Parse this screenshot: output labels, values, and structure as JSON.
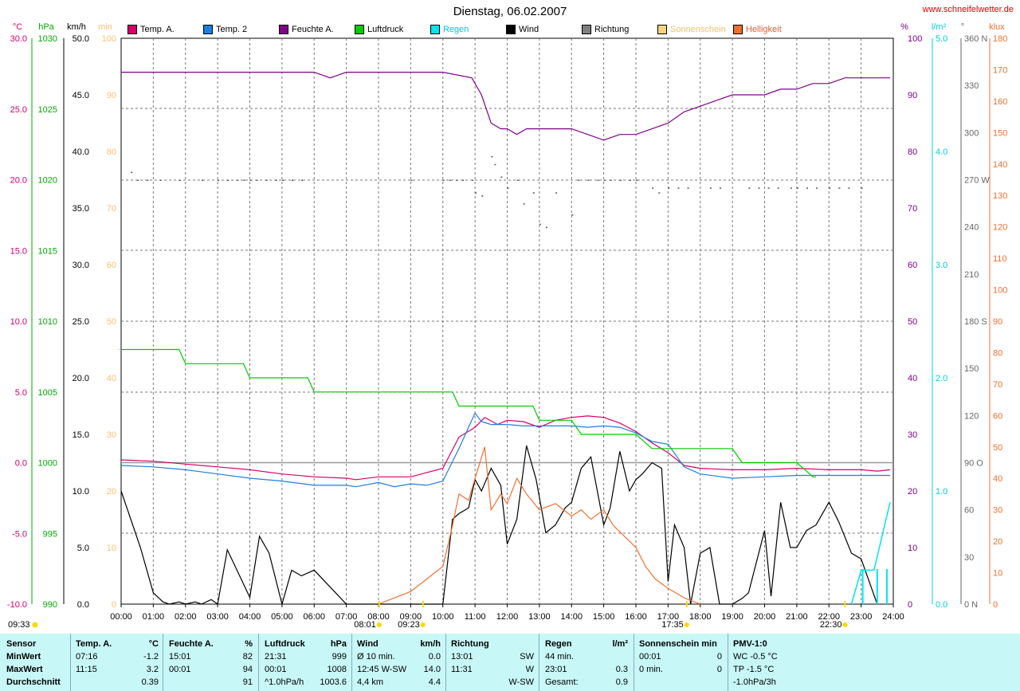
{
  "header": {
    "title": "Dienstag, 06.02.2007",
    "site": "www.schneifelwetter.de"
  },
  "legend": [
    {
      "label": "Temp. A.",
      "color": "#d6006b"
    },
    {
      "label": "Temp. 2",
      "color": "#1e7fe0"
    },
    {
      "label": "Feuchte A.",
      "color": "#80008a"
    },
    {
      "label": "Luftdruck",
      "color": "#00cc00"
    },
    {
      "label": "Regen",
      "color": "#00e5f0"
    },
    {
      "label": "Wind",
      "color": "#000000"
    },
    {
      "label": "Richtung",
      "color": "#808080"
    },
    {
      "label": "Sonnenschein",
      "color": "#ffd27f"
    },
    {
      "label": "Helligkeit",
      "color": "#f07030"
    }
  ],
  "units": {
    "temp": "°C",
    "pressure": "hPa",
    "wind": "km/h",
    "sun": "min",
    "humidity": "%",
    "rain": "l/m²",
    "dir": "°",
    "lux": "klux"
  },
  "footer": {
    "sensor": {
      "head": "Sensor",
      "rows": [
        "MinWert",
        "MaxWert",
        "Durchschnitt"
      ]
    },
    "temp": {
      "head": "Temp. A.",
      "unit": "°C",
      "rows": [
        [
          "07:16",
          "-1.2"
        ],
        [
          "11:15",
          "3.2"
        ],
        [
          "",
          "0.39"
        ]
      ]
    },
    "hum": {
      "head": "Feuchte A.",
      "unit": "%",
      "rows": [
        [
          "15:01",
          "82"
        ],
        [
          "00:01",
          "94"
        ],
        [
          "",
          "91"
        ]
      ]
    },
    "press": {
      "head": "Luftdruck",
      "unit": "hPa",
      "rows": [
        [
          "21:31",
          "999"
        ],
        [
          "00:01",
          "1008"
        ],
        [
          "^1.0hPa/h",
          "1003.6"
        ]
      ]
    },
    "wind": {
      "head": "Wind",
      "unit": "km/h",
      "rows": [
        [
          "Ø 10 min.",
          "0.0"
        ],
        [
          "12:45    W-SW",
          "14.0"
        ],
        [
          "4,4 km",
          "4.4"
        ]
      ]
    },
    "dir": {
      "head": "Richtung",
      "rows": [
        [
          "13:01",
          "SW"
        ],
        [
          "11:31",
          "W"
        ],
        [
          "",
          "W-SW"
        ]
      ]
    },
    "rain": {
      "head": "Regen",
      "unit": "l/m²",
      "rows": [
        [
          "44 min.",
          ""
        ],
        [
          "23:01",
          "0.3"
        ],
        [
          "Gesamt:",
          "0.9"
        ]
      ]
    },
    "sun": {
      "head": "Sonnenschein min",
      "rows": [
        [
          "",
          ""
        ],
        [
          "00:01",
          "0"
        ],
        [
          "0 min.",
          "0"
        ]
      ]
    },
    "pmv": {
      "head": "PMV-1:0",
      "rows": [
        "WC -0.5 °C",
        "TP -1.5 °C",
        "-1.0hPa/3h"
      ]
    }
  },
  "chart_data": {
    "type": "line",
    "title": "Dienstag, 06.02.2007",
    "x_ticks": [
      "00:00",
      "01:00",
      "02:00",
      "03:00",
      "04:00",
      "05:00",
      "06:00",
      "07:00",
      "08:00",
      "09:00",
      "10:00",
      "11:00",
      "12:00",
      "13:00",
      "14:00",
      "15:00",
      "16:00",
      "17:00",
      "18:00",
      "19:00",
      "20:00",
      "21:00",
      "22:00",
      "23:00",
      "24:00"
    ],
    "axes": {
      "temp": {
        "unit": "°C",
        "range": [
          -10,
          30
        ],
        "ticks": [
          "-10.0",
          "-5.0",
          "0.0",
          "5.0",
          "10.0",
          "15.0",
          "20.0",
          "25.0",
          "30.0"
        ]
      },
      "pressure": {
        "unit": "hPa",
        "range": [
          990,
          1030
        ],
        "ticks": [
          "990",
          "995",
          "1000",
          "1005",
          "1010",
          "1015",
          "1020",
          "1025",
          "1030"
        ]
      },
      "wind": {
        "unit": "km/h",
        "range": [
          0,
          50
        ],
        "ticks": [
          "0.0",
          "5.0",
          "10.0",
          "15.0",
          "20.0",
          "25.0",
          "30.0",
          "35.0",
          "40.0",
          "45.0",
          "50.0"
        ]
      },
      "sun": {
        "unit": "min",
        "range": [
          0,
          100
        ],
        "ticks": [
          "0",
          "10",
          "20",
          "30",
          "40",
          "50",
          "60",
          "70",
          "80",
          "90",
          "100"
        ]
      },
      "humidity": {
        "unit": "%",
        "range": [
          0,
          100
        ],
        "ticks": [
          "0",
          "10",
          "20",
          "30",
          "40",
          "50",
          "60",
          "70",
          "80",
          "90",
          "100"
        ]
      },
      "rain": {
        "unit": "l/m²",
        "range": [
          0,
          5
        ],
        "ticks": [
          "0.0",
          "1.0",
          "2.0",
          "3.0",
          "4.0",
          "5.0"
        ]
      },
      "direction": {
        "unit": "°",
        "range": [
          0,
          360
        ],
        "ticks": [
          "0 N",
          "30",
          "60",
          "90 O",
          "120",
          "150",
          "180 S",
          "210",
          "240",
          "270 W",
          "300",
          "330",
          "360 N"
        ]
      },
      "brightness": {
        "unit": "klux",
        "range": [
          0,
          180
        ],
        "ticks": [
          "0",
          "10",
          "20",
          "30",
          "40",
          "50",
          "60",
          "70",
          "80",
          "90",
          "100",
          "110",
          "120",
          "130",
          "140",
          "150",
          "160",
          "170",
          "180"
        ]
      }
    },
    "series": [
      {
        "name": "Feuchte A.",
        "axis": "humidity",
        "color": "#80008a",
        "x": [
          0,
          1,
          2,
          3,
          4,
          5,
          6,
          6.5,
          7,
          8,
          9,
          10,
          10.9,
          11.2,
          11.5,
          11.8,
          12,
          12.3,
          12.6,
          13,
          13.5,
          14,
          14.5,
          15,
          15.5,
          16,
          16.5,
          17,
          17.5,
          18,
          18.5,
          19,
          19.5,
          20,
          20.5,
          21,
          21.5,
          22,
          22.5,
          23,
          23.5,
          23.9
        ],
        "y": [
          94,
          94,
          94,
          94,
          94,
          94,
          94,
          93,
          94,
          94,
          94,
          94,
          93,
          90,
          85,
          84,
          84,
          83,
          84,
          84,
          84,
          84,
          83,
          82,
          83,
          83,
          84,
          85,
          87,
          88,
          89,
          90,
          90,
          90,
          91,
          91,
          92,
          92,
          93,
          93,
          93,
          93
        ]
      },
      {
        "name": "Temp. A.",
        "axis": "temp",
        "color": "#d6006b",
        "x": [
          0,
          1,
          2,
          3,
          4,
          5,
          6,
          7,
          7.3,
          8,
          9,
          9.5,
          10,
          10.5,
          11,
          11.3,
          11.7,
          12,
          12.5,
          13,
          13.5,
          14,
          14.5,
          15,
          15.5,
          16,
          16.5,
          17,
          17.5,
          18,
          19,
          20,
          21,
          22,
          23,
          23.5,
          23.9
        ],
        "y": [
          0.2,
          0.1,
          -0.1,
          -0.3,
          -0.5,
          -0.8,
          -1.0,
          -1.1,
          -1.2,
          -1.0,
          -1.0,
          -0.7,
          -0.4,
          1.8,
          2.5,
          3.2,
          2.7,
          3.0,
          2.9,
          2.5,
          3.0,
          3.2,
          3.3,
          3.2,
          2.8,
          2.2,
          1.4,
          0.7,
          -0.2,
          -0.4,
          -0.5,
          -0.5,
          -0.4,
          -0.5,
          -0.5,
          -0.6,
          -0.5
        ]
      },
      {
        "name": "Temp. 2",
        "axis": "temp",
        "color": "#1e7fe0",
        "x": [
          0,
          1,
          2,
          3,
          4,
          5,
          6,
          7,
          7.3,
          8,
          8.5,
          9,
          9.5,
          10,
          10.5,
          11,
          11.2,
          11.5,
          12,
          12.5,
          13,
          13.5,
          14,
          14.5,
          15,
          15.5,
          16,
          16.5,
          17,
          17.5,
          18,
          19,
          20,
          21,
          22,
          23,
          23.9
        ],
        "y": [
          -0.2,
          -0.3,
          -0.5,
          -0.8,
          -1.1,
          -1.3,
          -1.6,
          -1.6,
          -1.7,
          -1.4,
          -1.7,
          -1.5,
          -1.6,
          -1.3,
          1.0,
          3.5,
          2.9,
          2.7,
          2.7,
          2.6,
          2.6,
          2.6,
          2.6,
          2.5,
          2.6,
          2.5,
          2.1,
          1.5,
          1.3,
          -0.3,
          -0.8,
          -1.1,
          -1.0,
          -0.9,
          -0.9,
          -0.9,
          -0.9
        ]
      },
      {
        "name": "Luftdruck",
        "axis": "pressure",
        "color": "#00cc00",
        "x": [
          0,
          1,
          1.8,
          2,
          3,
          3.8,
          4,
          5,
          5.8,
          6,
          7,
          8,
          9,
          10,
          10.3,
          10.5,
          11,
          12,
          12.8,
          13,
          14,
          14.3,
          15,
          16,
          16.5,
          17,
          18,
          19,
          19.3,
          20,
          21,
          21.5,
          21.6
        ],
        "y": [
          1008,
          1008,
          1008,
          1007,
          1007,
          1007,
          1006,
          1006,
          1006,
          1005,
          1005,
          1005,
          1005,
          1005,
          1005,
          1004,
          1004,
          1004,
          1004,
          1003,
          1003,
          1002,
          1002,
          1002,
          1001,
          1001,
          1001,
          1001,
          1000,
          1000,
          1000,
          999,
          999
        ]
      },
      {
        "name": "Wind",
        "axis": "wind",
        "color": "#000000",
        "x": [
          0,
          0.3,
          0.6,
          0.8,
          1.0,
          1.3,
          1.5,
          1.8,
          2.0,
          2.3,
          2.5,
          2.8,
          3.0,
          3.3,
          3.6,
          4.0,
          4.3,
          4.6,
          5.0,
          5.3,
          5.6,
          6.0,
          7,
          8,
          9,
          10,
          10.3,
          10.5,
          10.8,
          11.0,
          11.2,
          11.5,
          11.8,
          12.0,
          12.3,
          12.6,
          12.9,
          13.2,
          13.5,
          13.8,
          14.0,
          14.3,
          14.6,
          15.0,
          15.2,
          15.5,
          15.8,
          16.0,
          16.2,
          16.5,
          16.8,
          17.0,
          17.2,
          17.5,
          17.7,
          18.0,
          18.3,
          18.6,
          19.0,
          19.3,
          19.5,
          20.0,
          20.2,
          20.5,
          20.8,
          21.0,
          21.3,
          21.6,
          22.0,
          22.3,
          22.7,
          23.0,
          23.5
        ],
        "y": [
          10.0,
          7.5,
          5.0,
          3.0,
          1.0,
          0.2,
          0.0,
          0.2,
          0.0,
          0.2,
          0.0,
          0.4,
          0.0,
          4.8,
          3.0,
          0.6,
          6.0,
          4.5,
          0.0,
          3.0,
          2.5,
          3.0,
          0,
          0,
          0,
          0,
          7.5,
          8.0,
          8.5,
          11.0,
          10.0,
          12.0,
          10.5,
          5.3,
          7.5,
          14.0,
          11.0,
          6.3,
          7.0,
          8.5,
          9.0,
          12.0,
          13.0,
          7.0,
          8.5,
          13.5,
          10.0,
          11.0,
          11.5,
          12.5,
          12.0,
          2.0,
          7.0,
          5.0,
          0.0,
          4.5,
          5.0,
          0.0,
          0.0,
          0.5,
          1.0,
          6.5,
          0.7,
          9.0,
          5.0,
          5.0,
          6.5,
          7.0,
          9.0,
          7.3,
          4.5,
          4.0,
          0.0
        ]
      },
      {
        "name": "Helligkeit",
        "axis": "brightness",
        "color": "#f07030",
        "x": [
          8.0,
          8.5,
          9.0,
          9.5,
          10.0,
          10.3,
          10.5,
          10.8,
          11.0,
          11.3,
          11.5,
          11.8,
          12.0,
          12.3,
          12.6,
          13.0,
          13.5,
          14.0,
          14.3,
          14.6,
          15.0,
          15.3,
          15.6,
          16.0,
          16.3,
          16.6,
          17.0,
          17.5,
          18.0
        ],
        "y": [
          0,
          2,
          4,
          8,
          12,
          25,
          35,
          33,
          40,
          50,
          30,
          35,
          32,
          40,
          35,
          30,
          32,
          28,
          30,
          27,
          30,
          25,
          22,
          18,
          12,
          8,
          5,
          2,
          0
        ]
      },
      {
        "name": "Regen",
        "axis": "rain",
        "color": "#00e5f0",
        "x": [
          22.7,
          23.0,
          23.4,
          23.9
        ],
        "y": [
          0.0,
          0.3,
          0.3,
          0.9
        ]
      }
    ],
    "direction_points": {
      "x": [
        0.3,
        0.5,
        0.8,
        1.2,
        1.8,
        2.5,
        3.0,
        3.3,
        3.6,
        3.8,
        4.0,
        4.2,
        4.5,
        4.8,
        5.0,
        5.3,
        5.6,
        9.0,
        10.0,
        10.2,
        10.4,
        10.6,
        10.9,
        11.0,
        11.2,
        11.5,
        11.6,
        11.8,
        12.0,
        12.3,
        12.5,
        12.8,
        13.0,
        13.2,
        13.5,
        14.0,
        14.2,
        14.5,
        14.8,
        15.0,
        15.2,
        15.5,
        15.8,
        16.0,
        16.5,
        16.7,
        17.0,
        17.3,
        17.6,
        18.3,
        18.6,
        19.5,
        19.8,
        20.1,
        20.4,
        20.8,
        21.0,
        21.3,
        21.6,
        22.0,
        22.3,
        22.6,
        23.0
      ],
      "y": [
        275,
        270,
        270,
        270,
        270,
        270,
        270,
        270,
        270,
        270,
        270,
        270,
        270,
        270,
        270,
        270,
        270,
        270,
        270,
        270,
        270,
        270,
        270,
        262,
        260,
        285,
        280,
        272,
        265,
        270,
        255,
        262,
        242,
        240,
        262,
        248,
        270,
        270,
        270,
        270,
        270,
        270,
        270,
        270,
        265,
        262,
        265,
        265,
        265,
        265,
        265,
        265,
        265,
        265,
        265,
        265,
        265,
        265,
        265,
        265,
        265,
        265,
        265
      ]
    },
    "markers": [
      {
        "label": "08:01",
        "x": 8.02,
        "icon": "sunrise"
      },
      {
        "label": "09:23",
        "x": 9.38,
        "icon": "moonrise"
      },
      {
        "label": "17:35",
        "x": 17.58,
        "icon": "sunset"
      },
      {
        "label": "22:30",
        "x": 22.5,
        "icon": "moonset"
      },
      {
        "label": "09:33",
        "x": null,
        "icon": "moon"
      }
    ]
  }
}
